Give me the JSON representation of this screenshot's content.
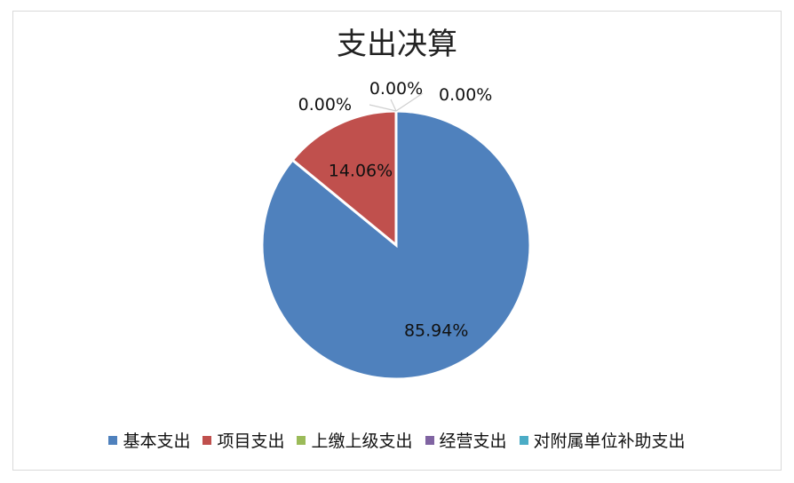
{
  "chart_data": {
    "type": "pie",
    "title": "支出决算",
    "categories": [
      "基本支出",
      "项目支出",
      "上缴上级支出",
      "经营支出",
      "对附属单位补助支出"
    ],
    "values": [
      85.94,
      14.06,
      0.0,
      0.0,
      0.0
    ],
    "data_labels": [
      "85.94%",
      "14.06%",
      "0.00%",
      "0.00%",
      "0.00%"
    ],
    "colors": [
      "#4F81BD",
      "#C0504D",
      "#9BBB59",
      "#8064A2",
      "#4BACC6"
    ],
    "legend_position": "bottom"
  }
}
